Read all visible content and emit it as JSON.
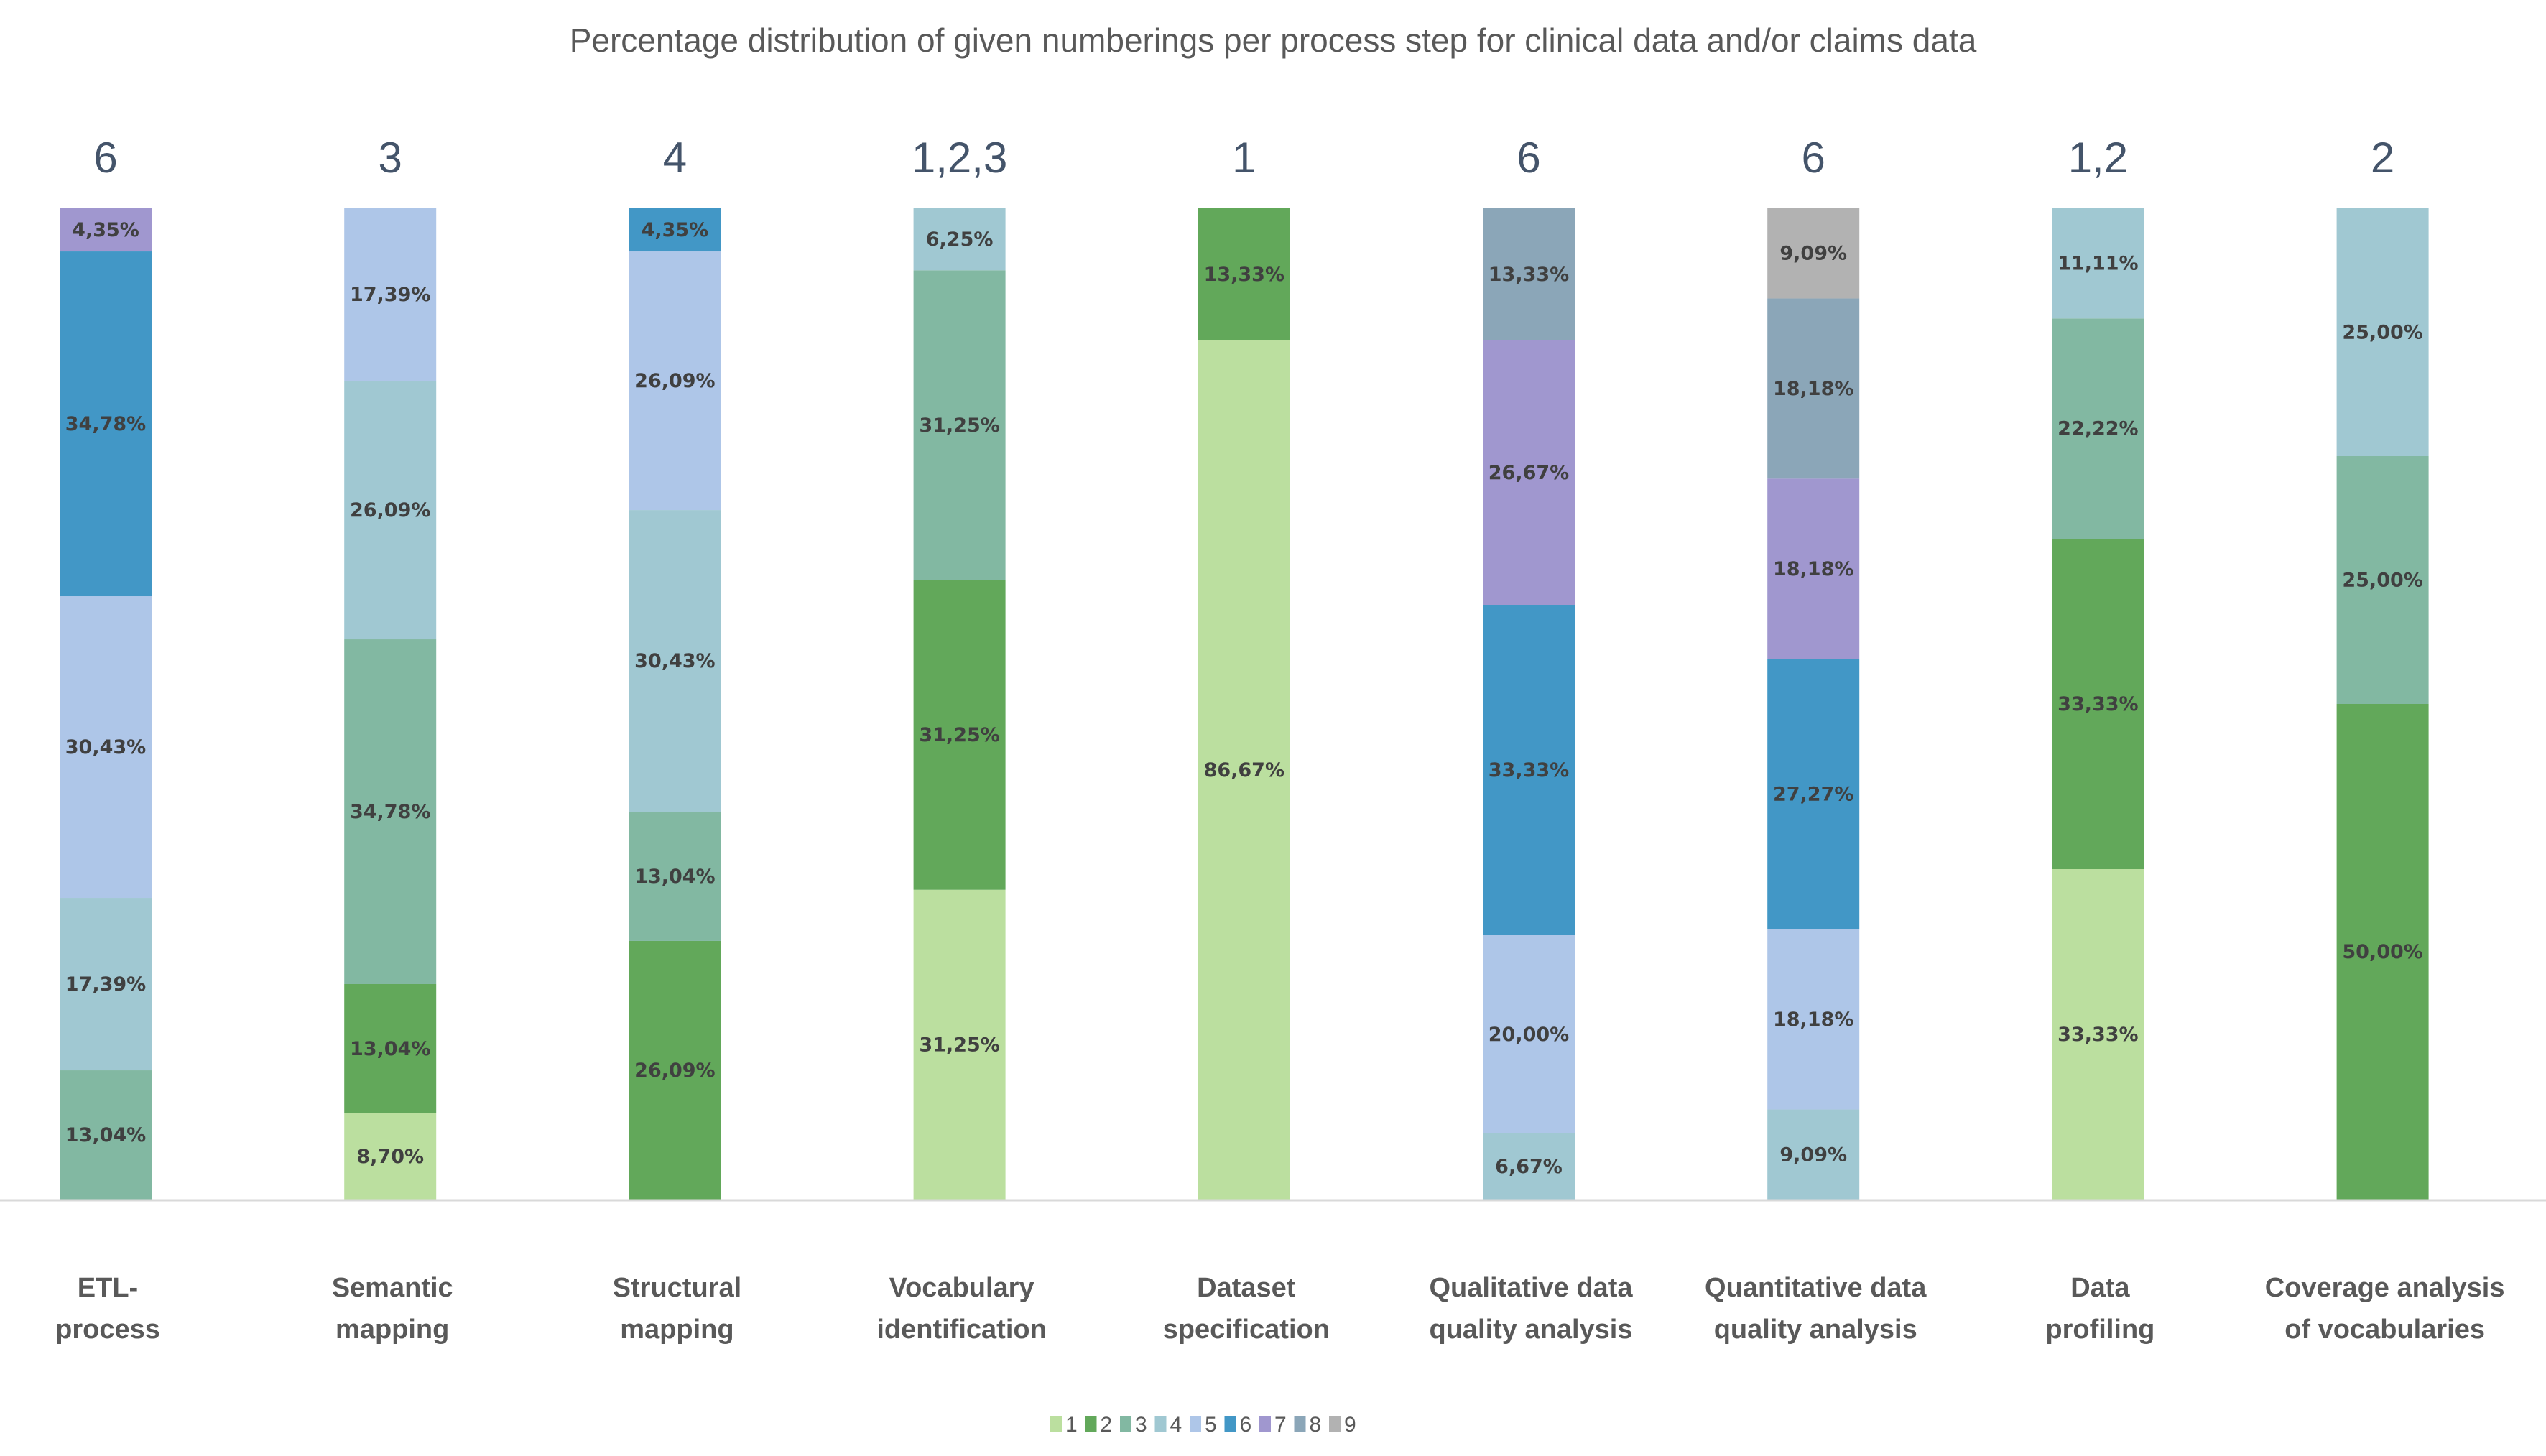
{
  "chart_data": {
    "type": "bar",
    "stacked": true,
    "percent_stacked": true,
    "title": "Percentage distribution of given numberings per process step for clinical data and/or claims data",
    "xlabel": "",
    "ylabel": "",
    "ylim": [
      0,
      100
    ],
    "grid": false,
    "legend_position": "bottom",
    "categories": [
      [
        "ETL-",
        "process"
      ],
      [
        "Semantic",
        "mapping"
      ],
      [
        "Structural",
        "mapping"
      ],
      [
        "Vocabulary",
        "identification"
      ],
      [
        "Dataset",
        "specification"
      ],
      [
        "Qualitative data",
        "quality analysis"
      ],
      [
        "Quantitative data",
        "quality analysis"
      ],
      [
        "Data",
        "profiling"
      ],
      [
        "Coverage analysis",
        "of vocabularies"
      ]
    ],
    "top_labels": [
      "6",
      "3",
      "4",
      "1,2,3",
      "1",
      "6",
      "6",
      "1,2",
      "2"
    ],
    "series": [
      {
        "name": "1",
        "color": "#bbdf9f",
        "values": [
          0,
          8.7,
          0,
          31.25,
          86.67,
          0,
          0,
          33.33,
          0
        ]
      },
      {
        "name": "2",
        "color": "#62a85a",
        "values": [
          0,
          13.04,
          26.09,
          31.25,
          13.33,
          0,
          0,
          33.33,
          50.0
        ]
      },
      {
        "name": "3",
        "color": "#82b8a2",
        "values": [
          13.04,
          34.78,
          13.04,
          31.25,
          0,
          0,
          0,
          22.22,
          25.0
        ]
      },
      {
        "name": "4",
        "color": "#a0c8d2",
        "values": [
          17.39,
          26.09,
          30.43,
          6.25,
          0,
          6.67,
          9.09,
          11.11,
          25.0
        ]
      },
      {
        "name": "5",
        "color": "#aec6e8",
        "values": [
          30.43,
          17.39,
          26.09,
          0,
          0,
          20.0,
          18.18,
          0,
          0
        ]
      },
      {
        "name": "6",
        "color": "#4297c6",
        "values": [
          34.78,
          0,
          4.35,
          0,
          0,
          33.33,
          27.27,
          0,
          0
        ]
      },
      {
        "name": "7",
        "color": "#a097cf",
        "values": [
          4.35,
          0,
          0,
          0,
          0,
          26.67,
          18.18,
          0,
          0
        ]
      },
      {
        "name": "8",
        "color": "#8ba6b8",
        "values": [
          0,
          0,
          0,
          0,
          0,
          13.33,
          18.18,
          0,
          0
        ]
      },
      {
        "name": "9",
        "color": "#b2b2b2",
        "values": [
          0,
          0,
          0,
          0,
          0,
          0,
          9.09,
          0,
          0
        ]
      }
    ],
    "value_labels": [
      [
        null,
        null,
        "13,04%",
        "17,39%",
        "30,43%",
        "34,78%",
        "4,35%",
        null,
        null
      ],
      [
        "8,70%",
        "13,04%",
        "34,78%",
        "26,09%",
        "17,39%",
        null,
        null,
        null,
        null
      ],
      [
        null,
        "26,09%",
        "13,04%",
        "30,43%",
        "26,09%",
        "4,35%",
        null,
        null,
        null
      ],
      [
        "31,25%",
        "31,25%",
        "31,25%",
        "6,25%",
        null,
        null,
        null,
        null,
        null
      ],
      [
        "86,67%",
        "13,33%",
        null,
        null,
        null,
        null,
        null,
        null,
        null
      ],
      [
        null,
        null,
        null,
        "6,67%",
        "20,00%",
        "33,33%",
        "26,67%",
        "13,33%",
        null
      ],
      [
        null,
        null,
        null,
        "9,09%",
        "18,18%",
        "27,27%",
        "18,18%",
        "18,18%",
        "9,09%"
      ],
      [
        "33,33%",
        "33,33%",
        "22,22%",
        "11,11%",
        null,
        null,
        null,
        null,
        null
      ],
      [
        null,
        "50,00%",
        "25,00%",
        "25,00%",
        null,
        null,
        null,
        null,
        null
      ]
    ]
  }
}
